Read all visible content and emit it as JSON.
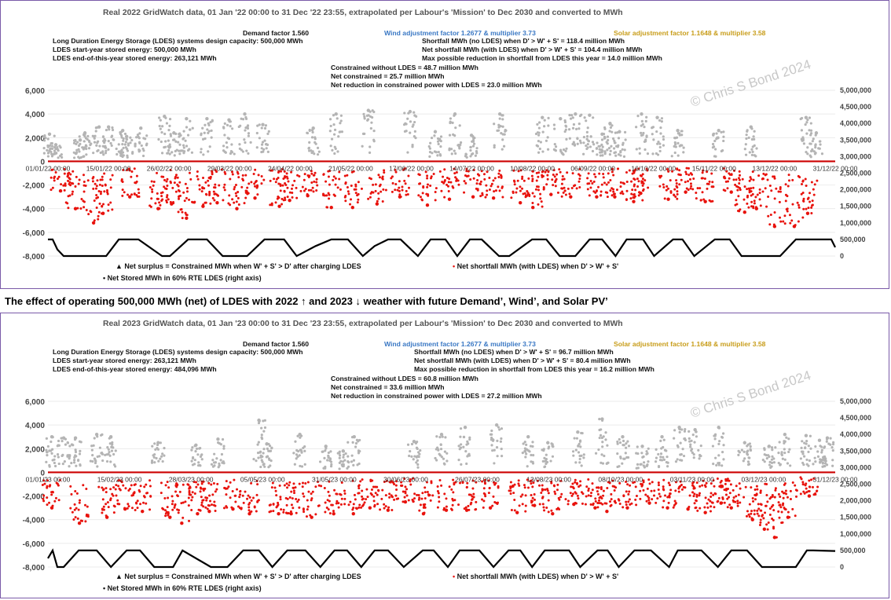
{
  "caption": "The effect of operating 500,000 MWh (net) of LDES with 2022 ↑ and 2023 ↓ weather with future Demand’, Wind’, and Solar PV’",
  "watermark": "© Chris S Bond  2024",
  "colors": {
    "surplus": "#b4b4b4",
    "shortfall": "#e8120c",
    "stored": "#000000",
    "zero_line": "#cc0000",
    "border": "#7a5aa8"
  },
  "chart_data": [
    {
      "type": "scatter",
      "title": "Real 2022 GridWatch data, 01 Jan '22 00:00 to 31 Dec '22 23:55,  extrapolated per Labour's 'Mission' to Dec 2030 and converted to MWh",
      "annotations": {
        "demand_factor": "Demand factor 1.560",
        "wind": "Wind adjustment factor 1.2677 & multiplier 3.73",
        "solar": "Solar adjustment factor 1.1648 & multiplier 3.58",
        "ldes_capacity": "Long Duration Energy Storage (LDES) systems design capacity: 500,000 MWh",
        "ldes_start": "LDES start-year stored energy: 500,000 MWh",
        "ldes_end": "LDES end-of-this-year stored energy: 263,121 MWh",
        "shortfall_no_ldes": "Shortfall MWh (no LDES) when D' > W' + S' = 118.4 million MWh",
        "net_shortfall": "Net shortfall MWh (with LDES) when D' > W' + S' = 104.4 million MWh",
        "max_reduction": "Max possible reduction in shortfall from LDES this year = 14.0 million MWh",
        "constrained_without": "Constrained without LDES = 48.7 million MWh",
        "net_constrained": "Net constrained = 25.7 million MWh",
        "net_reduction": "Net reduction in constrained power with LDES = 23.0 million MWh"
      },
      "y_left_ticks": [
        "6,000",
        "4,000",
        "2,000",
        "0",
        "-2,000",
        "-4,000",
        "-6,000",
        "-8,000"
      ],
      "y_right_ticks": [
        "5,000,000",
        "4,500,000",
        "4,000,000",
        "3,500,000",
        "3,000,000",
        "2,500,000",
        "2,000,000",
        "1,500,000",
        "1,000,000",
        "500,000",
        "0"
      ],
      "ylim": [
        -8000,
        6000
      ],
      "y2lim": [
        0,
        5000000
      ],
      "x_ticks": [
        "01/01/22 00:00",
        "15/01/22 00:00",
        "26/02/22 00:00",
        "29/03/22 00:00",
        "24/04/22 00:00",
        "21/05/22 00:00",
        "17/06/22 00:00",
        "14/07/22 00:00",
        "10/08/22 00:00",
        "06/09/22 00:00",
        "16/10/22 00:00",
        "15/11/22 00:00",
        "13/12/22 00:00",
        "31/12/22 00:00"
      ],
      "legend": {
        "surplus": "Net surplus = Constrained MWh when W' + S' > D' after charging LDES",
        "shortfall": "Net shortfall MWh (with LDES) when D' > W' + S'",
        "stored": "Net Stored MWh in 60% RTE LDES (right axis)"
      },
      "series": [
        {
          "name": "Net surplus = Constrained MWh when W' + S' > D' after charging LDES",
          "axis": "left",
          "x": [
            0.2,
            1.0,
            4.1,
            4.7,
            6.5,
            7.7,
            9.5,
            10.0,
            11.8,
            14.8,
            16.0,
            17.6,
            20.2,
            23.0,
            25.0,
            27.3,
            33.7,
            36.6,
            40.7,
            46.0,
            49.2,
            51.7,
            53.8,
            57.4,
            62.8,
            65.1,
            67.0,
            68.8,
            70.4,
            71.4,
            72.6,
            75.4,
            77.4,
            80.0,
            85.2,
            89.3,
            96.3,
            97.6
          ],
          "y": [
            2300,
            1400,
            1800,
            2400,
            2900,
            2900,
            2600,
            2100,
            2800,
            3800,
            2400,
            3600,
            3600,
            3500,
            4000,
            3100,
            2800,
            4000,
            4300,
            4200,
            2500,
            4000,
            2200,
            4000,
            3700,
            3600,
            4000,
            3900,
            2300,
            3200,
            2500,
            4000,
            3700,
            2600,
            2600,
            2900,
            3700,
            2400
          ]
        },
        {
          "name": "Net shortfall MWh (with LDES) when D' > W' + S'",
          "axis": "left",
          "x": [
            1.6,
            3.5,
            5.8,
            7.0,
            10.4,
            14.0,
            15.7,
            17.6,
            19.7,
            21.5,
            24.0,
            26.3,
            29.4,
            30.7,
            33.0,
            36.0,
            38.7,
            41.8,
            44.7,
            48.2,
            51.0,
            54.0,
            56.6,
            60.0,
            61.6,
            63.9,
            66.4,
            69.7,
            72.0,
            74.4,
            75.3,
            78.8,
            81.0,
            83.5,
            86.8,
            88.5,
            90.0,
            92.3,
            94.8,
            96.5
          ],
          "y": [
            -2500,
            -4000,
            -5200,
            -4400,
            -3000,
            -4000,
            -3600,
            -4800,
            -3800,
            -3500,
            -4000,
            -3100,
            -3800,
            -3300,
            -2900,
            -3900,
            -3900,
            -3600,
            -3000,
            -3700,
            -3200,
            -3000,
            -3100,
            -3500,
            -3900,
            -2800,
            -3000,
            -3000,
            -3000,
            -3400,
            -2700,
            -3200,
            -2600,
            -3400,
            -2600,
            -4300,
            -4000,
            -5500,
            -5500,
            -4400
          ]
        },
        {
          "name": "Net Stored MWh in 60% RTE LDES (right axis)",
          "axis": "right",
          "x": [
            0,
            0.6,
            1.2,
            2.0,
            4.0,
            7.4,
            9.0,
            11.5,
            14.5,
            15.5,
            17.8,
            20.2,
            22.2,
            25.3,
            27.5,
            30.0,
            31.6,
            34.0,
            36.0,
            38.1,
            40.0,
            41.5,
            43.2,
            44.8,
            47.0,
            48.6,
            50.5,
            52.0,
            53.6,
            55.1,
            57.3,
            58.6,
            61.5,
            63.3,
            65.0,
            67.0,
            68.8,
            70.4,
            72.1,
            73.5,
            75.6,
            77.0,
            79.4,
            80.6,
            82.1,
            84.7,
            86.6,
            88.1,
            90.0,
            93.0,
            95.0,
            98.3,
            99.5,
            100
          ],
          "y": [
            500000,
            500000,
            200000,
            0,
            0,
            0,
            500000,
            500000,
            0,
            0,
            500000,
            500000,
            0,
            0,
            500000,
            500000,
            0,
            300000,
            500000,
            500000,
            0,
            300000,
            500000,
            500000,
            0,
            500000,
            500000,
            0,
            500000,
            500000,
            0,
            0,
            500000,
            500000,
            0,
            0,
            500000,
            500000,
            0,
            500000,
            500000,
            0,
            500000,
            500000,
            0,
            500000,
            500000,
            0,
            0,
            0,
            500000,
            500000,
            500000,
            263121
          ]
        }
      ]
    },
    {
      "type": "scatter",
      "title": "Real 2023 GridWatch data, 01 Jan '23 00:00 to 31 Dec '23 23:55,  extrapolated per Labour's 'Mission' to Dec 2030 and converted to MWh",
      "annotations": {
        "demand_factor": "Demand factor 1.560",
        "wind": "Wind adjustment factor 1.2677 & multiplier 3.73",
        "solar": "Solar adjustment factor 1.1648 & multiplier 3.58",
        "ldes_capacity": "Long Duration Energy Storage (LDES) systems design capacity: 500,000 MWh",
        "ldes_start": "LDES start-year stored energy: 263,121 MWh",
        "ldes_end": "LDES end-of-this-year stored energy: 484,096 MWh",
        "shortfall_no_ldes": "Shortfall MWh (no LDES) when D' > W' + S' = 96.7 million MWh",
        "net_shortfall": "Net shortfall MWh (with LDES) when D' > W' + S' = 80.4 million MWh",
        "max_reduction": "Max possible reduction in shortfall from LDES this year = 16.2 million MWh",
        "constrained_without": "Constrained without LDES = 60.8 million MWh",
        "net_constrained": "Net constrained = 33.6 million MWh",
        "net_reduction": "Net reduction in constrained power with LDES = 27.2 million MWh"
      },
      "y_left_ticks": [
        "6,000",
        "4,000",
        "2,000",
        "0",
        "-2,000",
        "-4,000",
        "-6,000",
        "-8,000"
      ],
      "y_right_ticks": [
        "5,000,000",
        "4,500,000",
        "4,000,000",
        "3,500,000",
        "3,000,000",
        "2,500,000",
        "2,000,000",
        "1,500,000",
        "1,000,000",
        "500,000",
        "0"
      ],
      "ylim": [
        -8000,
        6000
      ],
      "y2lim": [
        0,
        5000000
      ],
      "x_ticks": [
        "01/01/23 00:00",
        "15/02/23 00:00",
        "28/03/23 00:00",
        "05/05/23 00:00",
        "31/05/23 00:00",
        "30/06/23 00:00",
        "26/07/23 00:00",
        "13/08/23 00:00",
        "08/10/23 00:00",
        "03/11/23 00:00",
        "03/12/23 00:00",
        "31/12/23 00:00"
      ],
      "legend": {
        "surplus": "Net surplus = Constrained MWh when W' + S' > D' after charging LDES",
        "shortfall": "Net shortfall MWh (with LDES) when D' > W' + S'",
        "stored": "Net Stored MWh in 60% RTE LDES (right axis)"
      },
      "series": [
        {
          "name": "Net surplus = Constrained MWh when W' + S' > D' after charging LDES",
          "axis": "left",
          "x": [
            0.5,
            2.0,
            3.5,
            6.2,
            8.0,
            14.0,
            18.8,
            21.6,
            26.8,
            27.8,
            32.0,
            35.3,
            37.5,
            38.9,
            46.5,
            50.0,
            53.0,
            57.0,
            61.0,
            63.5,
            67.3,
            70.4,
            73.0,
            75.5,
            78.0,
            80.2,
            82.2,
            85.2,
            88.5,
            91.6,
            93.6,
            96.3,
            98.0,
            99.0
          ],
          "y": [
            3000,
            2900,
            2900,
            3200,
            3000,
            2500,
            2300,
            2800,
            4400,
            2400,
            3200,
            2200,
            1800,
            3000,
            2600,
            3200,
            3800,
            4000,
            3000,
            2500,
            3400,
            4500,
            3000,
            2200,
            3000,
            3800,
            3600,
            3800,
            2500,
            2200,
            3200,
            3100,
            2700,
            2900
          ]
        },
        {
          "name": "Net shortfall MWh (with LDES) when D' > W' + S'",
          "axis": "left",
          "x": [
            0.5,
            4.0,
            7.5,
            9.8,
            12.0,
            15.5,
            17.0,
            19.0,
            20.5,
            23.5,
            25.6,
            29.3,
            30.9,
            33.5,
            36.3,
            38.8,
            40.9,
            43.2,
            45.4,
            47.7,
            50.6,
            53.2,
            56.2,
            59.6,
            61.8,
            64.1,
            66.8,
            69.5,
            71.0,
            73.6,
            76.4,
            78.7,
            81.3,
            83.5,
            85.5,
            86.8,
            89.5,
            91.0,
            92.3,
            94.0,
            96.7
          ],
          "y": [
            -3000,
            -4300,
            -3800,
            -3100,
            -3300,
            -3800,
            -4300,
            -3500,
            -3300,
            -3100,
            -3500,
            -3500,
            -3500,
            -3800,
            -3500,
            -3500,
            -3000,
            -3200,
            -2500,
            -3500,
            -3200,
            -3200,
            -3000,
            -3400,
            -2800,
            -3500,
            -2700,
            -3000,
            -3300,
            -3000,
            -2600,
            -3000,
            -3100,
            -3400,
            -2600,
            -3000,
            -4000,
            -4800,
            -5500,
            -3800,
            -2000
          ]
        },
        {
          "name": "Net Stored MWh in 60% RTE LDES (right axis)",
          "axis": "right",
          "x": [
            0,
            0.6,
            1.2,
            2.0,
            3.9,
            6.2,
            8.0,
            10.0,
            11.7,
            13.5,
            15.9,
            17.1,
            20.7,
            22.8,
            24.8,
            26.8,
            28.5,
            30.4,
            32.7,
            34.6,
            36.4,
            38.0,
            39.8,
            41.5,
            43.2,
            45.2,
            47.6,
            49.0,
            50.8,
            52.3,
            54.8,
            56.6,
            58.5,
            60.0,
            61.5,
            63.1,
            66.2,
            67.6,
            69.8,
            71.1,
            72.5,
            74.5,
            76.6,
            78.9,
            80.0,
            83.0,
            85.1,
            86.8,
            88.8,
            90.7,
            92.3,
            93.6,
            95.0,
            96.4,
            97.2,
            100
          ],
          "y": [
            263121,
            500000,
            0,
            0,
            500000,
            500000,
            0,
            500000,
            500000,
            0,
            0,
            500000,
            0,
            0,
            500000,
            500000,
            0,
            500000,
            500000,
            0,
            500000,
            500000,
            0,
            500000,
            500000,
            0,
            500000,
            500000,
            0,
            500000,
            500000,
            0,
            500000,
            500000,
            0,
            500000,
            500000,
            0,
            500000,
            500000,
            0,
            500000,
            500000,
            0,
            500000,
            500000,
            0,
            500000,
            500000,
            0,
            0,
            0,
            0,
            500000,
            500000,
            484096
          ]
        }
      ]
    }
  ]
}
